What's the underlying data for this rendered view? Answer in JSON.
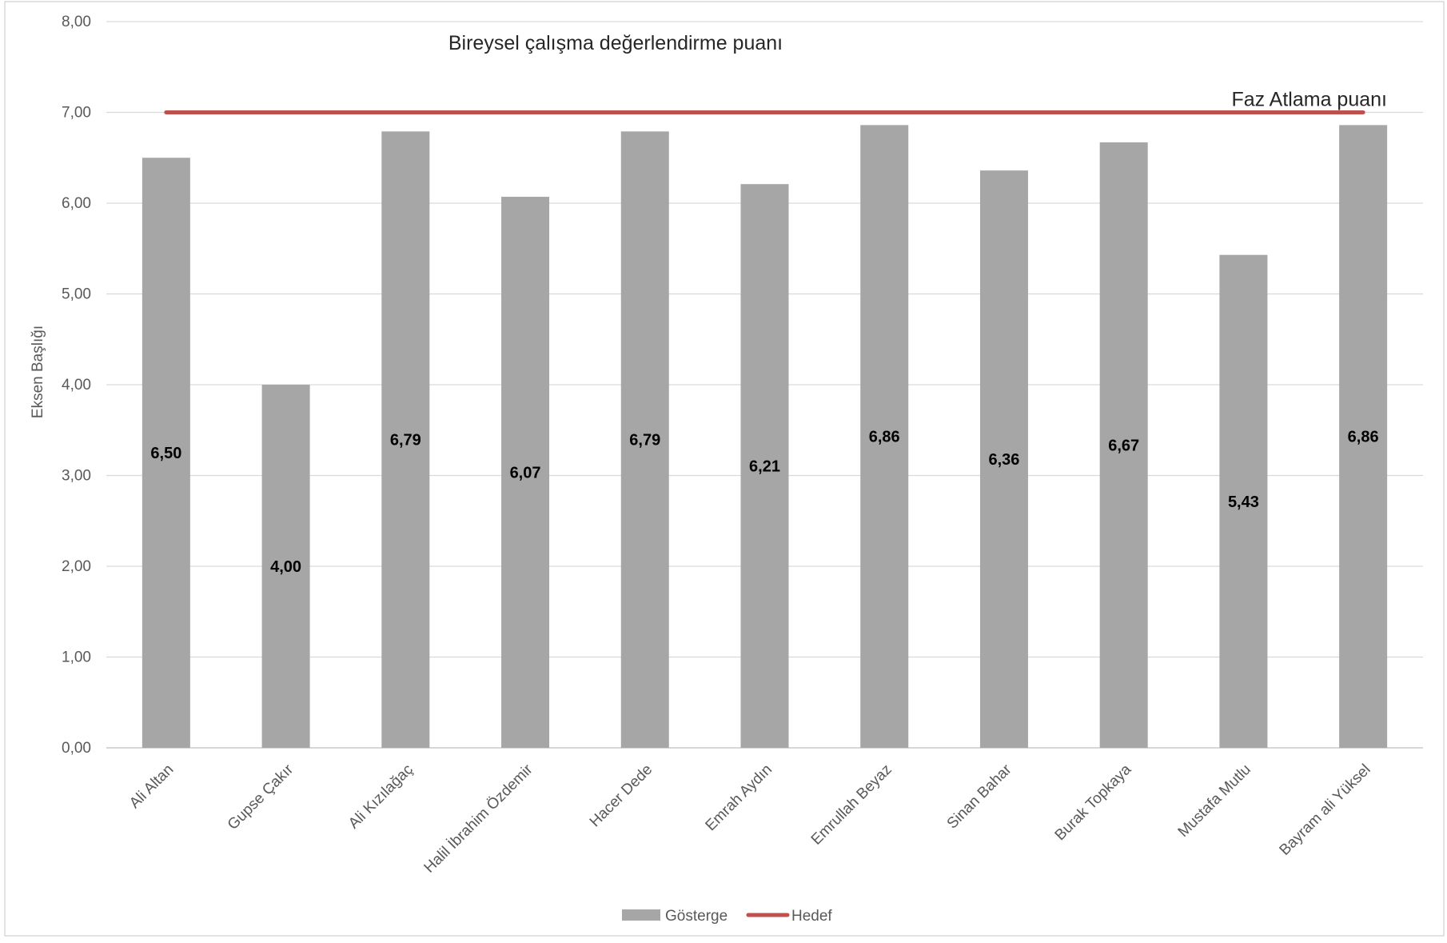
{
  "chart_data": {
    "type": "bar",
    "title": "Bireysel çalışma değerlendirme puanı",
    "ylabel": "Eksen Başlığı",
    "xlabel": "",
    "ylim": [
      0,
      8
    ],
    "yticks": [
      "0,00",
      "1,00",
      "2,00",
      "3,00",
      "4,00",
      "5,00",
      "6,00",
      "7,00",
      "8,00"
    ],
    "grid": true,
    "categories": [
      "Ali Altan",
      "Gupse Çakır",
      "Ali Kızılağaç",
      "Halil İbrahim Özdemir",
      "Hacer Dede",
      "Emrah Aydın",
      "Emrullah Beyaz",
      "Sinan Bahar",
      "Burak Topkaya",
      "Mustafa Mutlu",
      "Bayram ali Yüksel"
    ],
    "series": [
      {
        "name": "Gösterge",
        "type": "bar",
        "color": "#a6a6a6",
        "values": [
          6.5,
          4.0,
          6.79,
          6.07,
          6.79,
          6.21,
          6.86,
          6.36,
          6.67,
          5.43,
          6.86
        ],
        "labels": [
          "6,50",
          "4,00",
          "6,79",
          "6,07",
          "6,79",
          "6,21",
          "6,86",
          "6,36",
          "6,67",
          "5,43",
          "6,86"
        ]
      },
      {
        "name": "Hedef",
        "type": "line",
        "color": "#c0504d",
        "values": [
          7,
          7,
          7,
          7,
          7,
          7,
          7,
          7,
          7,
          7,
          7
        ]
      }
    ],
    "annotations": [
      {
        "text": "Faz Atlama puanı",
        "target": "Hedef"
      }
    ],
    "legend": {
      "position": "bottom",
      "entries": [
        "Gösterge",
        "Hedef"
      ]
    }
  }
}
